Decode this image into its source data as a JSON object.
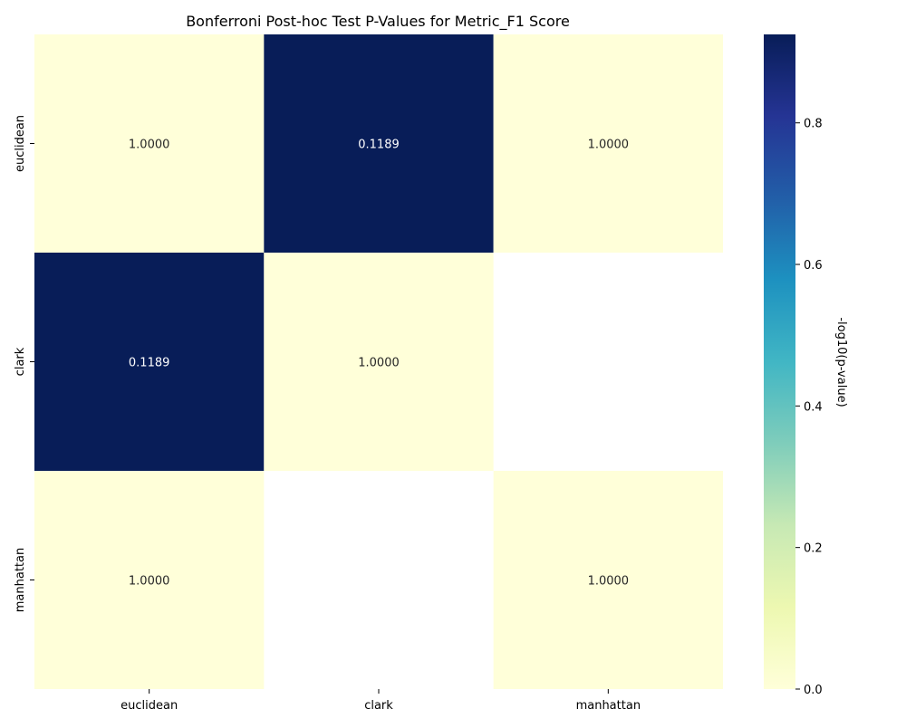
{
  "chart_data": {
    "type": "heatmap",
    "title": "Bonferroni Post-hoc Test P-Values for Metric_F1 Score",
    "xlabel": "",
    "ylabel": "",
    "x_categories": [
      "euclidean",
      "clark",
      "manhattan"
    ],
    "y_categories": [
      "euclidean",
      "clark",
      "manhattan"
    ],
    "cell_values": [
      [
        1.0,
        0.1189,
        1.0
      ],
      [
        0.1189,
        1.0,
        null
      ],
      [
        1.0,
        null,
        1.0
      ]
    ],
    "cell_labels": [
      [
        "1.0000",
        "0.1189",
        "1.0000"
      ],
      [
        "0.1189",
        "1.0000",
        ""
      ],
      [
        "1.0000",
        "",
        "1.0000"
      ]
    ],
    "colorbar": {
      "label": "-log10(p-value)",
      "colormap": "YlGnBu",
      "range": [
        0,
        0.925
      ],
      "ticks": [
        0.0,
        0.2,
        0.4,
        0.6,
        0.8
      ],
      "tick_labels": [
        "0.0",
        "0.2",
        "0.4",
        "0.6",
        "0.8"
      ]
    },
    "colors": {
      "low": "#ffffd9",
      "high": "#081d58",
      "cell_text_on_light": "#262626",
      "cell_text_on_dark": "#ffffff"
    }
  }
}
